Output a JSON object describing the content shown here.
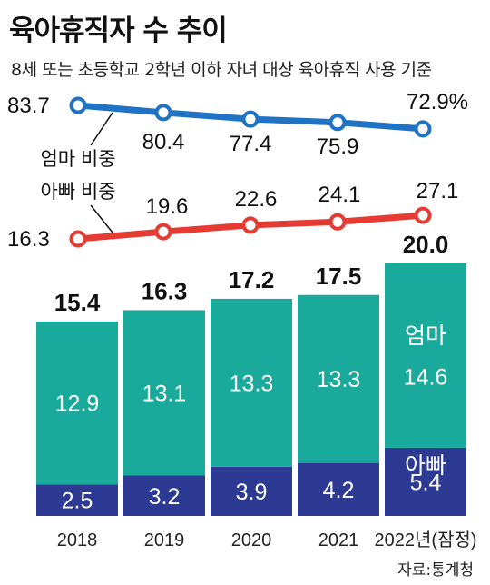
{
  "header": {
    "title": "육아휴직자 수 추이",
    "subtitle": "8세 또는 초등학교 2학년 이하 자녀 대상 육아휴직 사용 기준"
  },
  "source": "자료:통계청",
  "colors": {
    "mom_line": "#1f72c4",
    "dad_line": "#e63b32",
    "mom_bar": "#1aaa9c",
    "dad_bar": "#2c3a93"
  },
  "chart_data": {
    "type": "bar",
    "categories": [
      "2018",
      "2019",
      "2020",
      "2021",
      "2022년(잠정)"
    ],
    "bar_stack": {
      "series": [
        {
          "name": "아빠",
          "values": [
            2.5,
            3.2,
            3.9,
            4.2,
            5.4
          ]
        },
        {
          "name": "엄마",
          "values": [
            12.9,
            13.1,
            13.3,
            13.3,
            14.6
          ]
        }
      ],
      "totals": [
        "15.4",
        "16.3",
        "17.2",
        "17.5",
        "20.0"
      ],
      "mom_labels": [
        "12.9",
        "13.1",
        "13.3",
        "13.3",
        "14.6"
      ],
      "dad_labels": [
        "2.5",
        "3.2",
        "3.9",
        "4.2",
        "5.4"
      ],
      "mom_legend": "엄마",
      "dad_legend": "아빠"
    },
    "lines": {
      "type": "line",
      "series": [
        {
          "name": "엄마 비중",
          "values": [
            83.7,
            80.4,
            77.4,
            75.9,
            72.9
          ],
          "labels": [
            "83.7",
            "80.4",
            "77.4",
            "75.9",
            "72.9%"
          ]
        },
        {
          "name": "아빠 비중",
          "values": [
            16.3,
            19.6,
            22.6,
            24.1,
            27.1
          ],
          "labels": [
            "16.3",
            "19.6",
            "22.6",
            "24.1",
            "27.1"
          ]
        }
      ]
    }
  }
}
